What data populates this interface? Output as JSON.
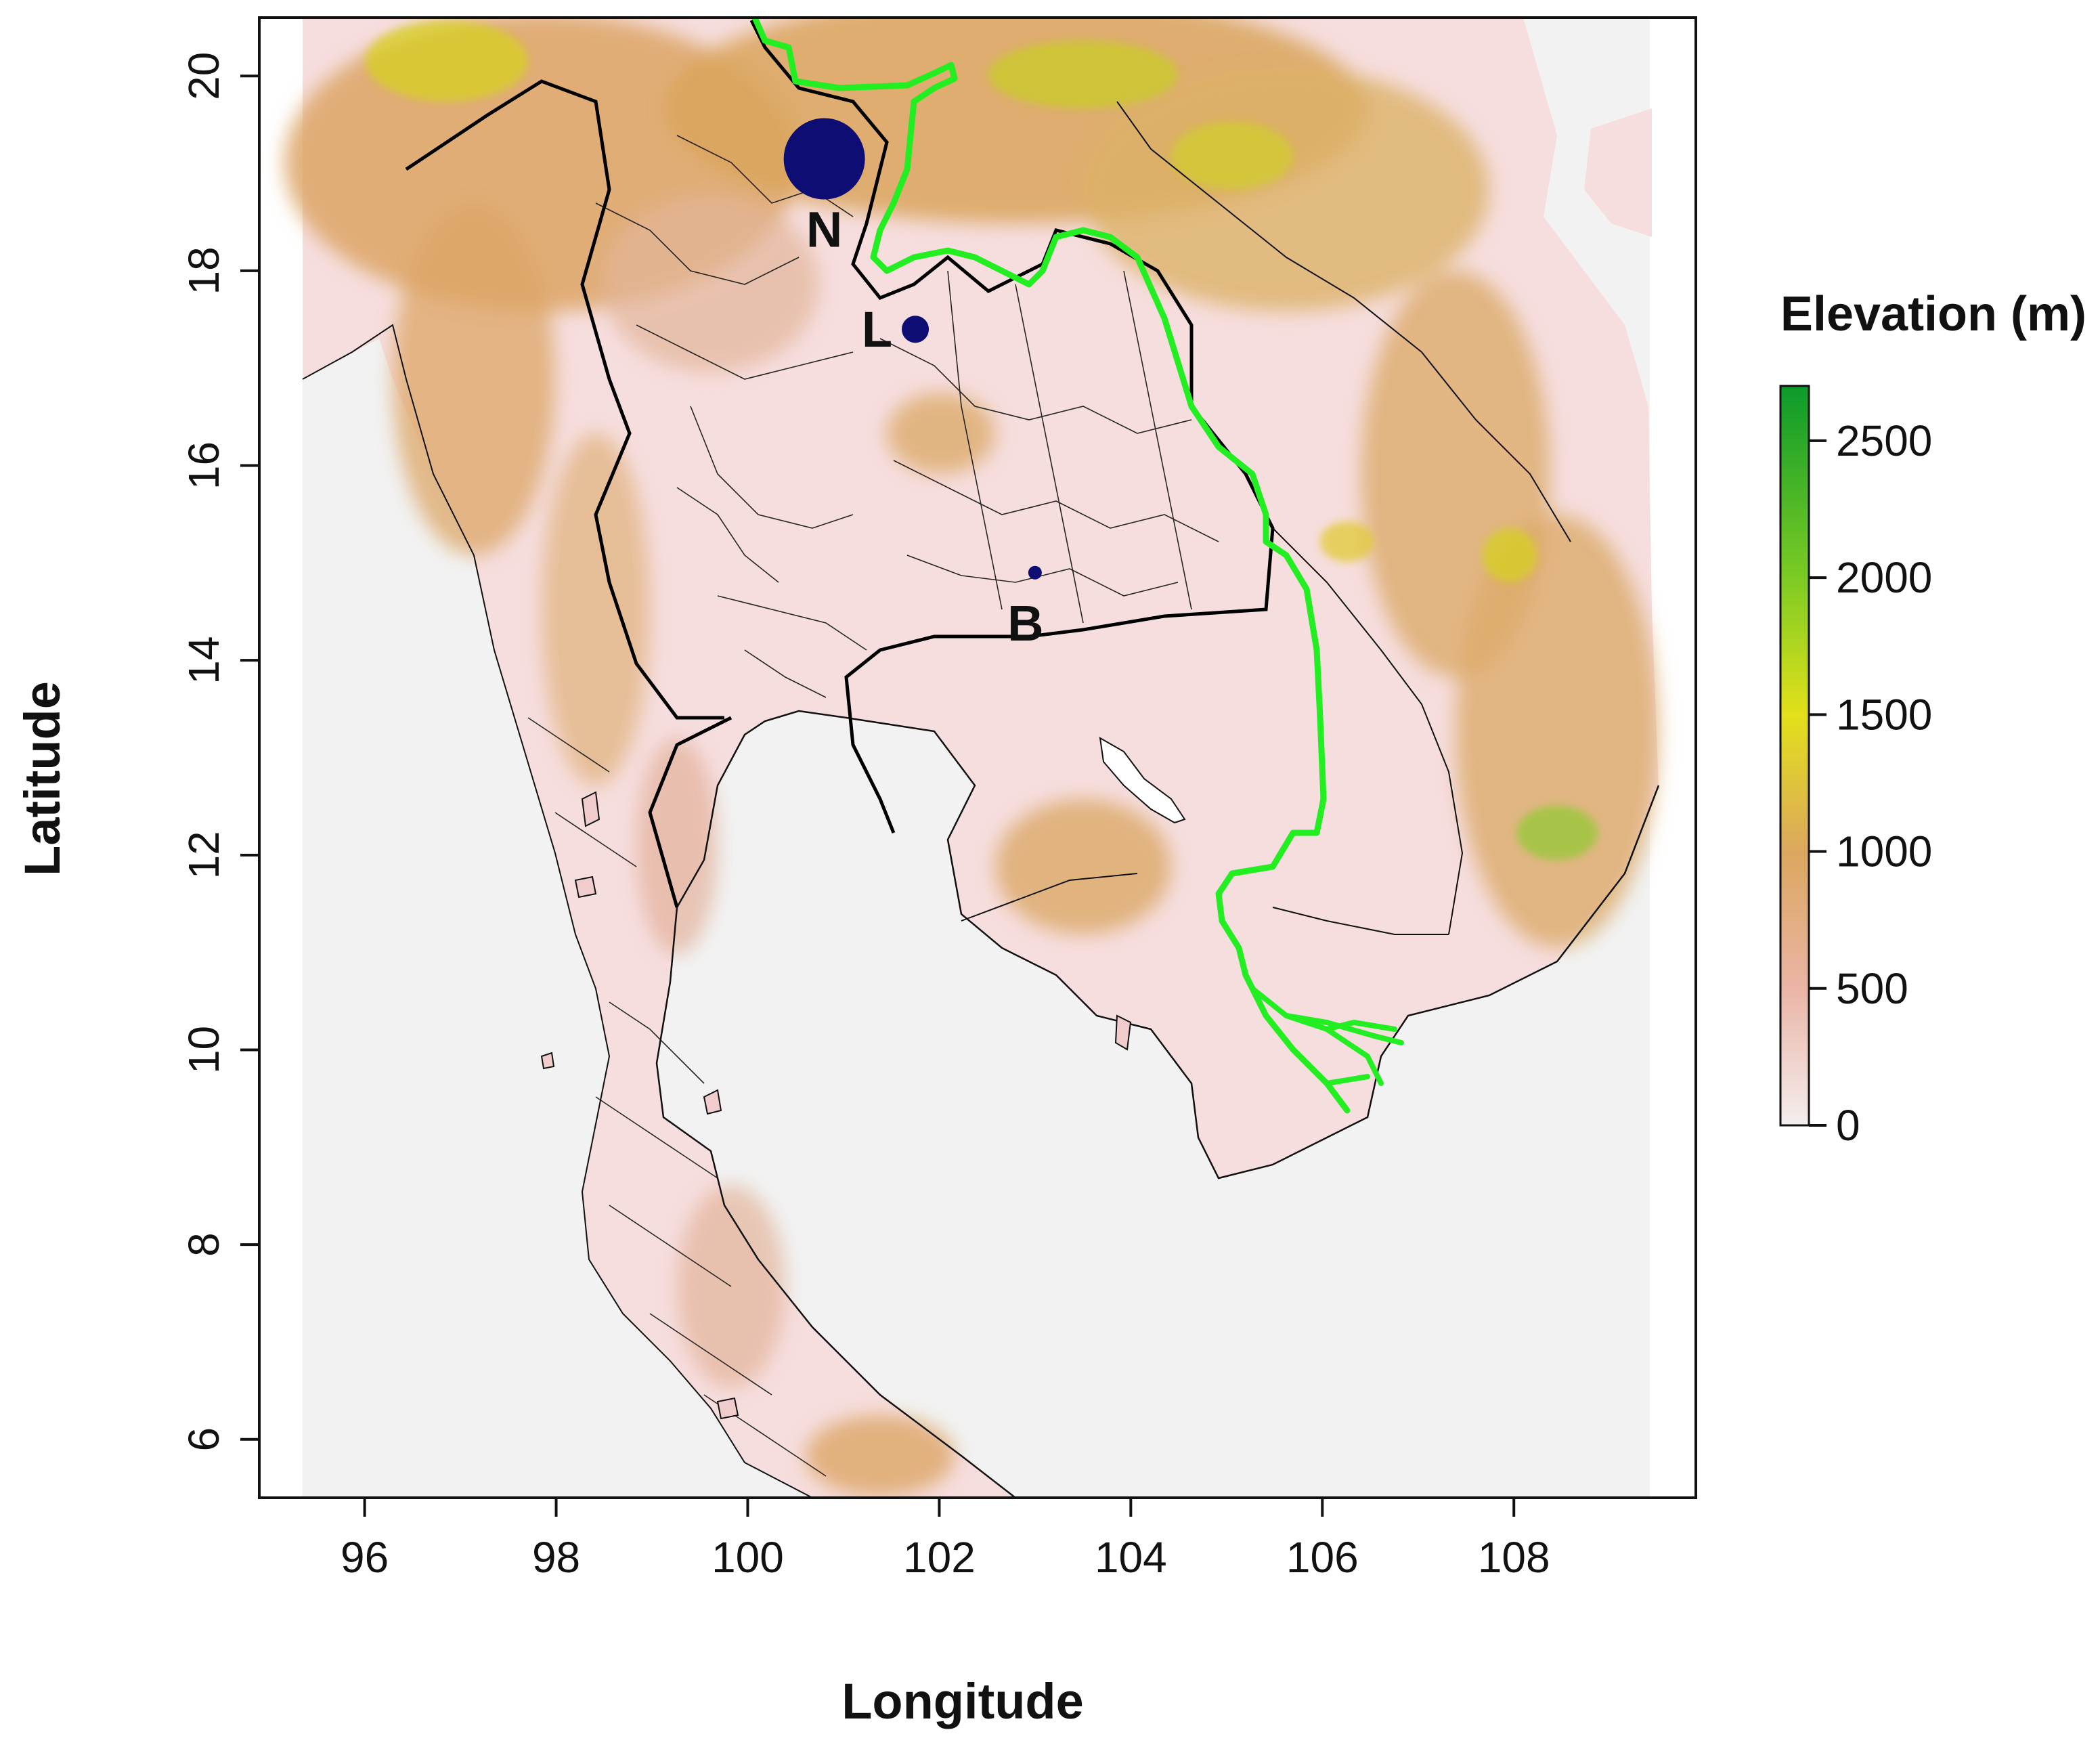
{
  "map": {
    "x_axis_title": "Longitude",
    "y_axis_title": "Latitude",
    "x_range": [
      94.9,
      109.9
    ],
    "y_range": [
      5.4,
      20.6
    ],
    "x_ticks": [
      96,
      98,
      100,
      102,
      104,
      106,
      108
    ],
    "y_ticks": [
      6,
      8,
      10,
      12,
      14,
      16,
      18,
      20
    ],
    "background_color": "#f2f2f2",
    "river_color": "#22ee22",
    "site_color": "#0d0d73",
    "sites": [
      {
        "label": "N",
        "lon": 100.8,
        "lat": 19.15,
        "size": "large"
      },
      {
        "label": "L",
        "lon": 101.75,
        "lat": 17.4,
        "size": "medium"
      },
      {
        "label": "B",
        "lon": 103.0,
        "lat": 14.9,
        "size": "small"
      }
    ]
  },
  "legend": {
    "title": "Elevation (m)",
    "ticks": [
      0,
      500,
      1000,
      1500,
      2000,
      2500
    ],
    "max_value": 2700,
    "color_stops": [
      {
        "value": 0,
        "color": "#f4eeee"
      },
      {
        "value": 500,
        "color": "#eab5a6"
      },
      {
        "value": 1000,
        "color": "#dba75e"
      },
      {
        "value": 1500,
        "color": "#e2e01a"
      },
      {
        "value": 2000,
        "color": "#7ccb24"
      },
      {
        "value": 2700,
        "color": "#0b9a2a"
      }
    ]
  }
}
